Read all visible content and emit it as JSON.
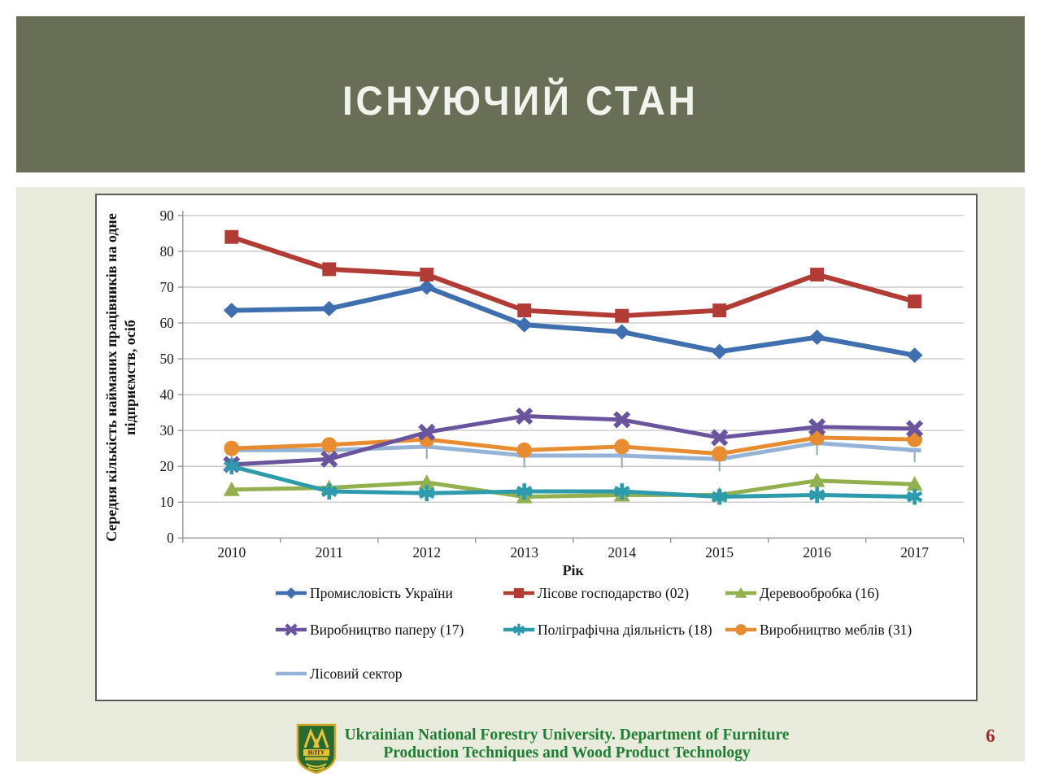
{
  "slide": {
    "title": "ІСНУЮЧИЙ СТАН",
    "footer": {
      "line1": "Ukrainian National Forestry University.  Department of Furniture",
      "line2": "Production Techniques and Wood Product Technology"
    },
    "page_number": "6",
    "logo": "university-shield-logo"
  },
  "colors": {
    "header_bg": "#696F57",
    "panel_bg": "#E9EBDD",
    "chart_border": "#5A5A5A",
    "gridline": "#C4C4C4",
    "axis": "#8C8C8C",
    "footer_text": "#1E7E34",
    "page_number": "#9C2C2C"
  },
  "chart_data": {
    "type": "line",
    "x": [
      "2010",
      "2011",
      "2012",
      "2013",
      "2014",
      "2015",
      "2016",
      "2017"
    ],
    "xlabel": "Рік",
    "ylabel": "Середня кількість найманих працівників на одне підприємств, осіб",
    "ylabel_lines": [
      "Середня кількість найманих працівників на одне",
      "підприємств, осіб"
    ],
    "ylim": [
      0,
      90
    ],
    "ytick_step": 10,
    "grid": true,
    "legend_position": "bottom",
    "series": [
      {
        "name": "Промисловість України",
        "marker": "diamond",
        "color": "#3F6FAE",
        "values": [
          63.5,
          64,
          70,
          59.5,
          57.5,
          52,
          56,
          51
        ]
      },
      {
        "name": "Лісове господарство (02)",
        "marker": "square",
        "color": "#B13B35",
        "values": [
          84,
          75,
          73.5,
          63.5,
          62,
          63.5,
          73.5,
          66
        ]
      },
      {
        "name": "Деревообробка (16)",
        "marker": "triangle",
        "color": "#93B04E",
        "values": [
          13.5,
          14,
          15.5,
          11.5,
          12,
          12,
          16,
          15
        ]
      },
      {
        "name": "Виробництво паперу (17)",
        "marker": "x",
        "color": "#6A549D",
        "values": [
          20.5,
          22,
          29.5,
          34,
          33,
          28,
          31,
          30.5
        ]
      },
      {
        "name": "Поліграфічна діяльність (18)",
        "marker": "asterisk",
        "color": "#2E9BAD",
        "values": [
          20,
          13,
          12.5,
          13,
          13,
          11.5,
          12,
          11.5
        ]
      },
      {
        "name": "Виробництво меблів (31)",
        "marker": "circle",
        "color": "#E88C32",
        "values": [
          25,
          26,
          27.5,
          24.5,
          25.5,
          23.5,
          28,
          27.5
        ]
      },
      {
        "name": "Лісовий сектор",
        "marker": "dash",
        "color": "#95B3D7",
        "values": [
          24.5,
          24.5,
          25.5,
          23,
          23,
          22,
          26.5,
          24.5
        ]
      }
    ]
  }
}
